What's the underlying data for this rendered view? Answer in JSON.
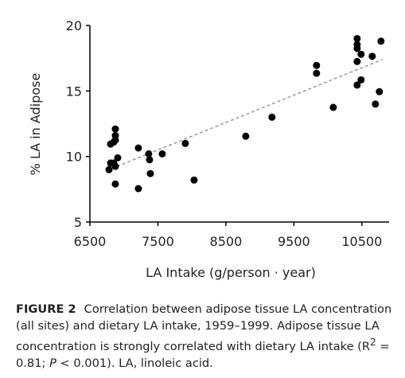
{
  "chart_data": {
    "type": "scatter",
    "xlabel": "LA Intake (g/person · year)",
    "ylabel": "% LA in Adipose",
    "x": [
      6781,
      6804,
      6851,
      6804,
      6851,
      6874,
      6874,
      6874,
      6909,
      6874,
      6874,
      7213,
      7213,
      7365,
      7377,
      7389,
      7564,
      7903,
      8032,
      8792,
      9178,
      9833,
      9833,
      10079,
      10430,
      10430,
      10430,
      10430,
      10488,
      10488,
      10430,
      10652,
      10699,
      10757,
      10781
    ],
    "y": [
      9.0,
      9.5,
      9.5,
      10.95,
      11.1,
      12.1,
      11.6,
      11.25,
      9.9,
      9.25,
      7.9,
      10.65,
      7.55,
      10.2,
      9.75,
      8.7,
      10.2,
      11.0,
      8.2,
      11.55,
      13.0,
      16.95,
      16.35,
      13.75,
      19.0,
      18.55,
      18.25,
      17.25,
      17.8,
      15.85,
      15.45,
      17.65,
      14.0,
      14.95,
      18.8
    ],
    "color": "#000000",
    "trendline": {
      "x": [
        6900,
        10800
      ],
      "y": [
        9.25,
        17.4
      ],
      "color": "#999999"
    },
    "xlim": [
      6500,
      10900
    ],
    "ylim": [
      5,
      20
    ],
    "xticks": [
      6500,
      7500,
      8500,
      9500,
      10500
    ],
    "yticks": [
      5,
      10,
      15,
      20
    ]
  },
  "caption": {
    "label": "FIGURE 2",
    "text_1": "Correlation between adipose tissue LA concentration (all sites) and dietary LA intake, 1959–1999. Adipose tissue LA concentration is strongly correlated with dietary LA intake (R",
    "sup": "2",
    "text_2": " = 0.81; ",
    "italic": "P",
    "text_3": " < 0.001). LA, linoleic acid."
  }
}
